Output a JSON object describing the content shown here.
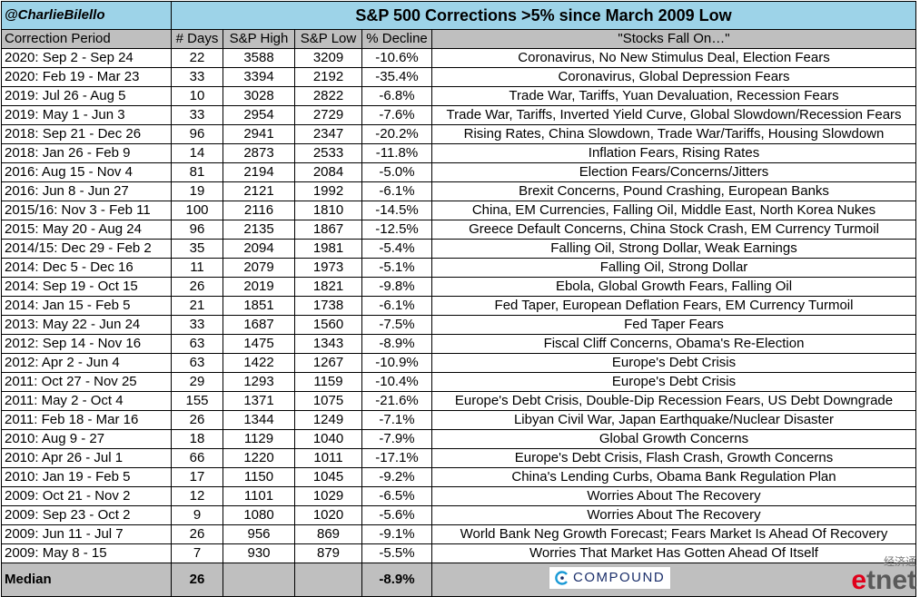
{
  "header": {
    "handle": "@CharlieBilello",
    "title": "S&P 500 Corrections >5% since March 2009 Low"
  },
  "columns": [
    "Correction Period",
    "# Days",
    "S&P High",
    "S&P Low",
    "% Decline",
    "\"Stocks Fall On…\""
  ],
  "rows": [
    [
      "2020: Sep 2 - Sep 24",
      "22",
      "3588",
      "3209",
      "-10.6%",
      "Coronavirus, No New Stimulus Deal, Election Fears"
    ],
    [
      "2020: Feb 19 - Mar 23",
      "33",
      "3394",
      "2192",
      "-35.4%",
      "Coronavirus, Global Depression Fears"
    ],
    [
      "2019: Jul 26 - Aug 5",
      "10",
      "3028",
      "2822",
      "-6.8%",
      "Trade War, Tariffs, Yuan Devaluation, Recession Fears"
    ],
    [
      "2019: May 1 - Jun 3",
      "33",
      "2954",
      "2729",
      "-7.6%",
      "Trade War, Tariffs, Inverted Yield Curve, Global Slowdown/Recession Fears"
    ],
    [
      "2018: Sep 21 - Dec 26",
      "96",
      "2941",
      "2347",
      "-20.2%",
      "Rising Rates, China Slowdown, Trade War/Tariffs, Housing Slowdown"
    ],
    [
      "2018: Jan 26 - Feb 9",
      "14",
      "2873",
      "2533",
      "-11.8%",
      "Inflation Fears, Rising Rates"
    ],
    [
      "2016: Aug 15 - Nov 4",
      "81",
      "2194",
      "2084",
      "-5.0%",
      "Election Fears/Concerns/Jitters"
    ],
    [
      "2016: Jun 8 - Jun 27",
      "19",
      "2121",
      "1992",
      "-6.1%",
      "Brexit Concerns, Pound Crashing, European Banks"
    ],
    [
      "2015/16: Nov 3 - Feb 11",
      "100",
      "2116",
      "1810",
      "-14.5%",
      "China, EM Currencies, Falling Oil, Middle East, North Korea Nukes"
    ],
    [
      "2015: May 20 - Aug 24",
      "96",
      "2135",
      "1867",
      "-12.5%",
      "Greece Default Concerns, China Stock Crash, EM Currency Turmoil"
    ],
    [
      "2014/15: Dec 29 - Feb 2",
      "35",
      "2094",
      "1981",
      "-5.4%",
      "Falling Oil, Strong Dollar, Weak Earnings"
    ],
    [
      "2014: Dec 5 - Dec 16",
      "11",
      "2079",
      "1973",
      "-5.1%",
      "Falling Oil, Strong Dollar"
    ],
    [
      "2014: Sep 19 - Oct 15",
      "26",
      "2019",
      "1821",
      "-9.8%",
      "Ebola, Global Growth Fears, Falling Oil"
    ],
    [
      "2014: Jan 15 - Feb 5",
      "21",
      "1851",
      "1738",
      "-6.1%",
      "Fed Taper, European Deflation Fears, EM Currency Turmoil"
    ],
    [
      "2013: May 22 - Jun 24",
      "33",
      "1687",
      "1560",
      "-7.5%",
      "Fed Taper Fears"
    ],
    [
      "2012: Sep 14 - Nov 16",
      "63",
      "1475",
      "1343",
      "-8.9%",
      "Fiscal Cliff Concerns, Obama's Re-Election"
    ],
    [
      "2012: Apr 2 - Jun 4",
      "63",
      "1422",
      "1267",
      "-10.9%",
      "Europe's Debt Crisis"
    ],
    [
      "2011: Oct 27 - Nov 25",
      "29",
      "1293",
      "1159",
      "-10.4%",
      "Europe's Debt Crisis"
    ],
    [
      "2011: May 2 - Oct 4",
      "155",
      "1371",
      "1075",
      "-21.6%",
      "Europe's Debt Crisis, Double-Dip Recession Fears, US Debt Downgrade"
    ],
    [
      "2011: Feb 18 - Mar 16",
      "26",
      "1344",
      "1249",
      "-7.1%",
      "Libyan Civil War, Japan Earthquake/Nuclear Disaster"
    ],
    [
      "2010: Aug 9 - 27",
      "18",
      "1129",
      "1040",
      "-7.9%",
      "Global Growth Concerns"
    ],
    [
      "2010: Apr 26 - Jul 1",
      "66",
      "1220",
      "1011",
      "-17.1%",
      "Europe's Debt Crisis, Flash Crash, Growth Concerns"
    ],
    [
      "2010: Jan 19 - Feb 5",
      "17",
      "1150",
      "1045",
      "-9.2%",
      "China's Lending Curbs, Obama Bank Regulation Plan"
    ],
    [
      "2009: Oct 21 - Nov 2",
      "12",
      "1101",
      "1029",
      "-6.5%",
      "Worries About The Recovery"
    ],
    [
      "2009: Sep 23 - Oct 2",
      "9",
      "1080",
      "1020",
      "-5.6%",
      "Worries About The Recovery"
    ],
    [
      "2009: Jun 11 - Jul 7",
      "26",
      "956",
      "869",
      "-9.1%",
      "World Bank Neg Growth Forecast; Fears Market Is Ahead Of Recovery"
    ],
    [
      "2009: May 8 - 15",
      "7",
      "930",
      "879",
      "-5.5%",
      "Worries That Market Has Gotten Ahead Of Itself"
    ]
  ],
  "footer": {
    "label": "Median",
    "days": "26",
    "decline": "-8.9%",
    "logo_text": "COMPOUND"
  },
  "watermark": {
    "cn": "经济通",
    "en_e": "e",
    "en_rest": "tnet"
  },
  "colors": {
    "title_bg": "#9dd3e8",
    "header_bg": "#bfbfbf",
    "footer_bg": "#bfbfbf",
    "brand": "#1b2f6b",
    "watermark_red": "#e0001b"
  }
}
